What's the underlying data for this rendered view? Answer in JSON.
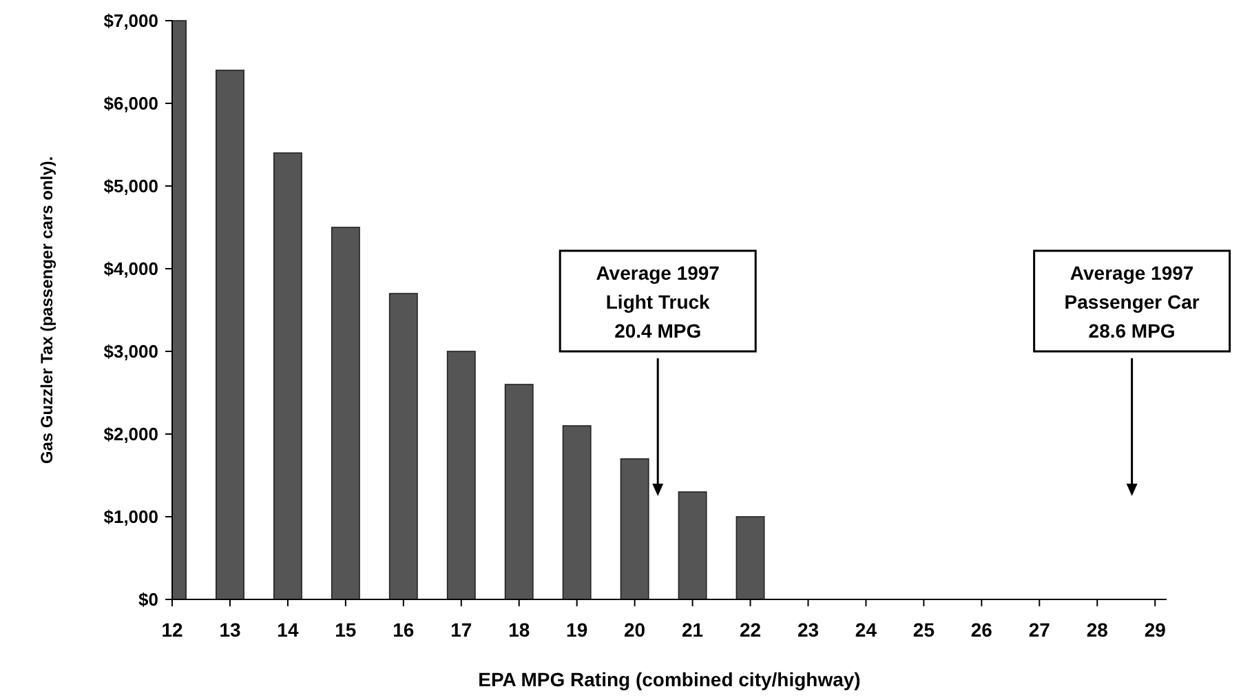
{
  "chart_data": {
    "type": "bar",
    "xlabel": "EPA MPG Rating (combined city/highway)",
    "ylabel": "Gas Guzzler Tax (passenger cars only).",
    "x": [
      12,
      13,
      14,
      15,
      16,
      17,
      18,
      19,
      20,
      21,
      22
    ],
    "values": [
      7000,
      6400,
      5400,
      4500,
      3700,
      3000,
      2600,
      2100,
      1700,
      1300,
      1000
    ],
    "color": "#555555",
    "xlim": [
      12,
      29.2
    ],
    "xticks": [
      12,
      13,
      14,
      15,
      16,
      17,
      18,
      19,
      20,
      21,
      22,
      23,
      24,
      25,
      26,
      27,
      28,
      29
    ],
    "ylim": [
      0,
      7000
    ],
    "yticks": [
      {
        "value": 0,
        "label": "$0"
      },
      {
        "value": 1000,
        "label": "$1,000"
      },
      {
        "value": 2000,
        "label": "$2,000"
      },
      {
        "value": 3000,
        "label": "$3,000"
      },
      {
        "value": 4000,
        "label": "$4,000"
      },
      {
        "value": 5000,
        "label": "$5,000"
      },
      {
        "value": 6000,
        "label": "$6,000"
      },
      {
        "value": 7000,
        "label": "$7,000"
      }
    ],
    "grid": false,
    "ref_lines": [
      {
        "axis": "x",
        "value": 20.4,
        "label": "Average 1997\nLight Truck\n20.4 MPG"
      },
      {
        "axis": "x",
        "value": 28.6,
        "label": "Average 1997\nPassenger Car\n28.6 MPG"
      }
    ]
  }
}
